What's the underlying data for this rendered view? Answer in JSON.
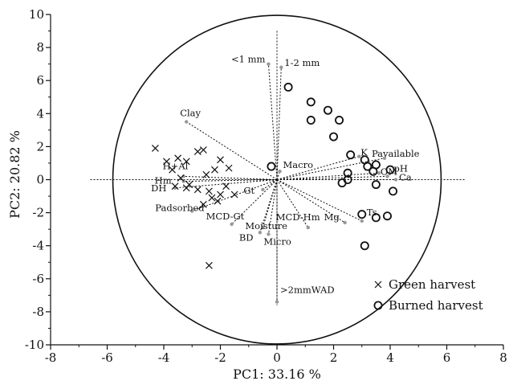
{
  "chart_data": {
    "type": "scatter",
    "xlabel": "PC1: 33.16 %",
    "ylabel": "PC2: 20.82 %",
    "xlim": [
      -8,
      8
    ],
    "ylim": [
      -10,
      10
    ],
    "xticks": [
      -8,
      -6,
      -4,
      -2,
      0,
      2,
      4,
      6,
      8
    ],
    "yticks": [
      -10,
      -8,
      -6,
      -4,
      -2,
      0,
      2,
      4,
      6,
      8,
      10
    ],
    "grid": false,
    "legend_position": "bottom-right",
    "correlation_circle": {
      "center": [
        0,
        0
      ],
      "radius": 5.8
    },
    "zero_lines": {
      "x_range": [
        -5.8,
        5.8
      ],
      "y_range": [
        -7.6,
        9.0
      ]
    },
    "variables": [
      {
        "label": "<1 mm",
        "x": -0.3,
        "y": 7.0
      },
      {
        "label": "1-2 mm",
        "x": 0.15,
        "y": 6.8
      },
      {
        "label": "Clay",
        "x": -3.2,
        "y": 3.5
      },
      {
        "label": "H+Al",
        "x": -3.3,
        "y": 0.2
      },
      {
        "label": "Hm",
        "x": -3.3,
        "y": -0.1
      },
      {
        "label": "DH",
        "x": -3.6,
        "y": -0.5
      },
      {
        "label": "Padsorbed",
        "x": -3.0,
        "y": -1.9
      },
      {
        "label": "MCD-Gt",
        "x": -1.6,
        "y": -2.7
      },
      {
        "label": "Moisture",
        "x": -0.5,
        "y": -2.9
      },
      {
        "label": "BD",
        "x": -0.6,
        "y": -3.2
      },
      {
        "label": "Micro",
        "x": -0.3,
        "y": -3.3
      },
      {
        "label": "MCD-Hm",
        "x": 1.1,
        "y": -2.9
      },
      {
        "label": "Mg",
        "x": 2.4,
        "y": -2.6
      },
      {
        "label": "Ts",
        "x": 3.0,
        "y": -2.5
      },
      {
        "label": "Gt",
        "x": -0.5,
        "y": -0.6
      },
      {
        "label": "Macro",
        "x": 0.1,
        "y": 0.5
      },
      {
        "label": "K",
        "x": 2.9,
        "y": 1.4
      },
      {
        "label": "Pavailable",
        "x": 3.8,
        "y": 1.3
      },
      {
        "label": "OM",
        "x": 3.6,
        "y": 0.4
      },
      {
        "label": "pH",
        "x": 3.9,
        "y": 0.2
      },
      {
        "label": "Ca",
        "x": 4.2,
        "y": 0.0
      },
      {
        "label": ">2mmWAD",
        "x": 0.0,
        "y": -7.4
      }
    ],
    "series": [
      {
        "name": "Green harvest",
        "marker": "x",
        "points": [
          [
            -4.3,
            1.9
          ],
          [
            -3.9,
            1.1
          ],
          [
            -3.5,
            1.3
          ],
          [
            -3.2,
            1.1
          ],
          [
            -2.8,
            1.7
          ],
          [
            -2.6,
            1.8
          ],
          [
            -2.0,
            1.2
          ],
          [
            -1.7,
            0.7
          ],
          [
            -2.2,
            0.6
          ],
          [
            -2.5,
            0.3
          ],
          [
            -3.7,
            0.6
          ],
          [
            -3.4,
            0.1
          ],
          [
            -3.1,
            -0.3
          ],
          [
            -3.6,
            -0.4
          ],
          [
            -3.2,
            -0.5
          ],
          [
            -2.8,
            -0.6
          ],
          [
            -2.4,
            -0.7
          ],
          [
            -1.8,
            -0.4
          ],
          [
            -1.5,
            -0.9
          ],
          [
            -2.0,
            -0.9
          ],
          [
            -2.3,
            -1.1
          ],
          [
            -2.1,
            -1.3
          ],
          [
            -2.6,
            -1.5
          ],
          [
            -2.4,
            -5.2
          ]
        ]
      },
      {
        "name": "Burned harvest",
        "marker": "o",
        "points": [
          [
            0.4,
            5.6
          ],
          [
            1.2,
            4.7
          ],
          [
            1.8,
            4.2
          ],
          [
            2.2,
            3.6
          ],
          [
            1.2,
            3.6
          ],
          [
            2.0,
            2.6
          ],
          [
            2.6,
            1.5
          ],
          [
            3.1,
            1.2
          ],
          [
            3.5,
            0.9
          ],
          [
            3.2,
            0.8
          ],
          [
            3.4,
            0.5
          ],
          [
            4.0,
            0.6
          ],
          [
            2.5,
            0.4
          ],
          [
            2.5,
            0.0
          ],
          [
            2.3,
            -0.2
          ],
          [
            3.5,
            -0.3
          ],
          [
            4.1,
            -0.7
          ],
          [
            -0.2,
            0.8
          ],
          [
            3.0,
            -2.1
          ],
          [
            3.5,
            -2.3
          ],
          [
            3.9,
            -2.2
          ],
          [
            3.1,
            -4.0
          ]
        ]
      }
    ]
  }
}
